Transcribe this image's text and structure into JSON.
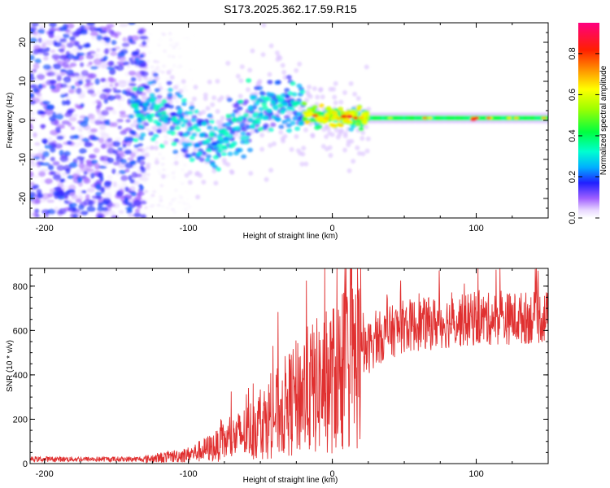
{
  "title": "S173.2025.362.17.59.R15",
  "chart_data": [
    {
      "type": "heatmap",
      "xlabel": "Height of straight line (km)",
      "ylabel": "Frequency (Hz)",
      "xlim": [
        -210,
        150
      ],
      "ylim": [
        -25,
        25
      ],
      "xticks": [
        -200,
        -100,
        0,
        100
      ],
      "xtick_labels": [
        "-200",
        "-100",
        "0",
        "100"
      ],
      "yticks": [
        -20,
        -10,
        0,
        10,
        20
      ],
      "ytick_labels": [
        "-20",
        "-10",
        "0",
        "10",
        "20"
      ],
      "colorbar": {
        "label": "Normalized spectral amplitude",
        "range": [
          0,
          0.95
        ],
        "ticks": [
          0.0,
          0.2,
          0.4,
          0.6,
          0.8
        ],
        "tick_labels": [
          "0.0",
          "0.2",
          "0.4",
          "0.6",
          "0.8"
        ]
      },
      "ridge_center_hz": [
        {
          "x": -135,
          "f": 4
        },
        {
          "x": -120,
          "f": 2
        },
        {
          "x": -105,
          "f": -1
        },
        {
          "x": -90,
          "f": -4
        },
        {
          "x": -80,
          "f": -5
        },
        {
          "x": -70,
          "f": -3
        },
        {
          "x": -60,
          "f": 0
        },
        {
          "x": -50,
          "f": 3
        },
        {
          "x": -40,
          "f": 4.5
        },
        {
          "x": -30,
          "f": 4
        },
        {
          "x": -20,
          "f": 2
        },
        {
          "x": -10,
          "f": 1
        },
        {
          "x": 0,
          "f": 1
        },
        {
          "x": 20,
          "f": 0.5
        },
        {
          "x": 150,
          "f": 0.5
        }
      ]
    },
    {
      "type": "line",
      "xlabel": "Height of straight line (km)",
      "ylabel": "SNR (10 * v/v)",
      "xlim": [
        -210,
        150
      ],
      "ylim": [
        0,
        880
      ],
      "xticks": [
        -200,
        -100,
        0,
        100
      ],
      "xtick_labels": [
        "-200",
        "-100",
        "0",
        "100"
      ],
      "yticks": [
        0,
        200,
        400,
        600,
        800
      ],
      "ytick_labels": [
        "0",
        "200",
        "400",
        "600",
        "800"
      ],
      "series_color": "#e03030",
      "trend": [
        {
          "x": -210,
          "y": 20
        },
        {
          "x": -130,
          "y": 20
        },
        {
          "x": -100,
          "y": 40
        },
        {
          "x": -80,
          "y": 80
        },
        {
          "x": -60,
          "y": 140
        },
        {
          "x": -40,
          "y": 220
        },
        {
          "x": -20,
          "y": 320
        },
        {
          "x": 0,
          "y": 380
        },
        {
          "x": 20,
          "y": 480
        },
        {
          "x": 30,
          "y": 560
        },
        {
          "x": 50,
          "y": 620
        },
        {
          "x": 100,
          "y": 650
        },
        {
          "x": 150,
          "y": 660
        }
      ]
    }
  ]
}
